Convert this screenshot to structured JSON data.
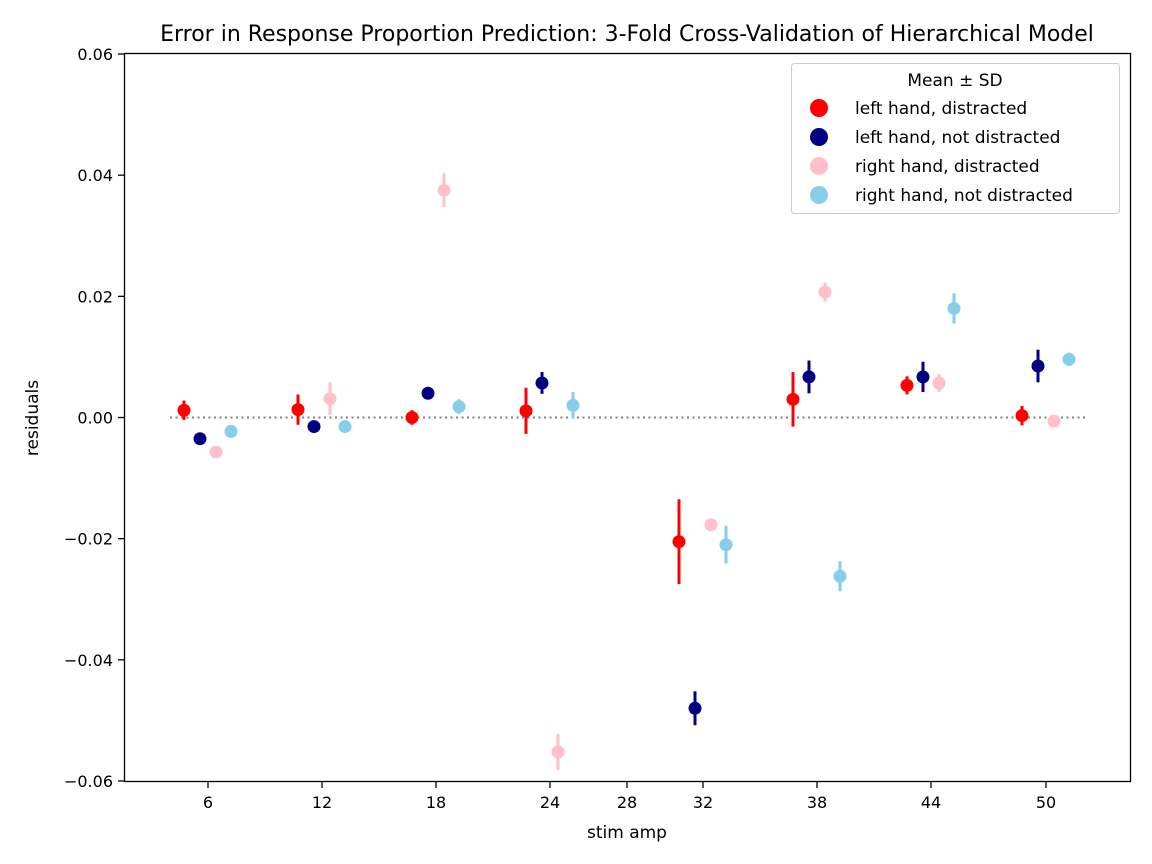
{
  "chart_data": {
    "type": "scatter",
    "title": "Error in Response Proportion Prediction: 3-Fold Cross-Validation of Hierarchical Model",
    "xlabel": "stim amp",
    "ylabel": "residuals",
    "ylim": [
      -0.06,
      0.06
    ],
    "y_ticks": [
      "0.06",
      "0.04",
      "0.02",
      "0.00",
      "−0.02",
      "−0.04",
      "−0.06"
    ],
    "categories": [
      "6",
      "12",
      "18",
      "24",
      "28",
      "32",
      "38",
      "44",
      "50"
    ],
    "legend": {
      "title": "Mean ± SD",
      "position": "top-right"
    },
    "series": [
      {
        "name": "left hand, distracted",
        "color": "#ff0000",
        "points": [
          {
            "category": "6",
            "mean": 0.0012,
            "sd": 0.0016
          },
          {
            "category": "12",
            "mean": 0.0013,
            "sd": 0.0025
          },
          {
            "category": "18",
            "mean": 0.0,
            "sd": 0.0012
          },
          {
            "category": "24",
            "mean": 0.0011,
            "sd": 0.0038
          },
          {
            "category": "32",
            "mean": -0.0205,
            "sd": 0.007
          },
          {
            "category": "38",
            "mean": 0.003,
            "sd": 0.0045
          },
          {
            "category": "44",
            "mean": 0.0053,
            "sd": 0.0015
          },
          {
            "category": "50",
            "mean": 0.0003,
            "sd": 0.0016
          }
        ]
      },
      {
        "name": "left hand, not distracted",
        "color": "#000080",
        "points": [
          {
            "category": "6",
            "mean": -0.0035,
            "sd": 0.0004
          },
          {
            "category": "12",
            "mean": -0.0015,
            "sd": 0.0004
          },
          {
            "category": "18",
            "mean": 0.004,
            "sd": 0.0004
          },
          {
            "category": "24",
            "mean": 0.0057,
            "sd": 0.0018
          },
          {
            "category": "32",
            "mean": -0.048,
            "sd": 0.0028
          },
          {
            "category": "38",
            "mean": 0.0067,
            "sd": 0.0027
          },
          {
            "category": "44",
            "mean": 0.0067,
            "sd": 0.0025
          },
          {
            "category": "50",
            "mean": 0.0085,
            "sd": 0.0027
          }
        ]
      },
      {
        "name": "right hand, distracted",
        "color": "#ffc0cb",
        "points": [
          {
            "category": "6",
            "mean": -0.0057,
            "sd": 0.0004
          },
          {
            "category": "12",
            "mean": 0.0031,
            "sd": 0.0027
          },
          {
            "category": "18",
            "mean": 0.0375,
            "sd": 0.0028
          },
          {
            "category": "24",
            "mean": -0.0552,
            "sd": 0.003
          },
          {
            "category": "32",
            "mean": -0.0177,
            "sd": 0.0004
          },
          {
            "category": "38",
            "mean": 0.0207,
            "sd": 0.0016
          },
          {
            "category": "44",
            "mean": 0.0057,
            "sd": 0.0015
          },
          {
            "category": "50",
            "mean": -0.0006,
            "sd": 0.0004
          }
        ]
      },
      {
        "name": "right hand, not distracted",
        "color": "#87ceeb",
        "points": [
          {
            "category": "6",
            "mean": -0.0023,
            "sd": 0.0004
          },
          {
            "category": "12",
            "mean": -0.0015,
            "sd": 0.0004
          },
          {
            "category": "18",
            "mean": 0.0018,
            "sd": 0.0012
          },
          {
            "category": "24",
            "mean": 0.002,
            "sd": 0.0022
          },
          {
            "category": "32",
            "mean": -0.021,
            "sd": 0.0031
          },
          {
            "category": "38",
            "mean": -0.0262,
            "sd": 0.0025
          },
          {
            "category": "44",
            "mean": 0.018,
            "sd": 0.0025
          },
          {
            "category": "50",
            "mean": 0.0096,
            "sd": 0.0011
          }
        ]
      }
    ],
    "reference_line": {
      "value": 0.0,
      "style": "dotted",
      "color": "#808080"
    }
  }
}
